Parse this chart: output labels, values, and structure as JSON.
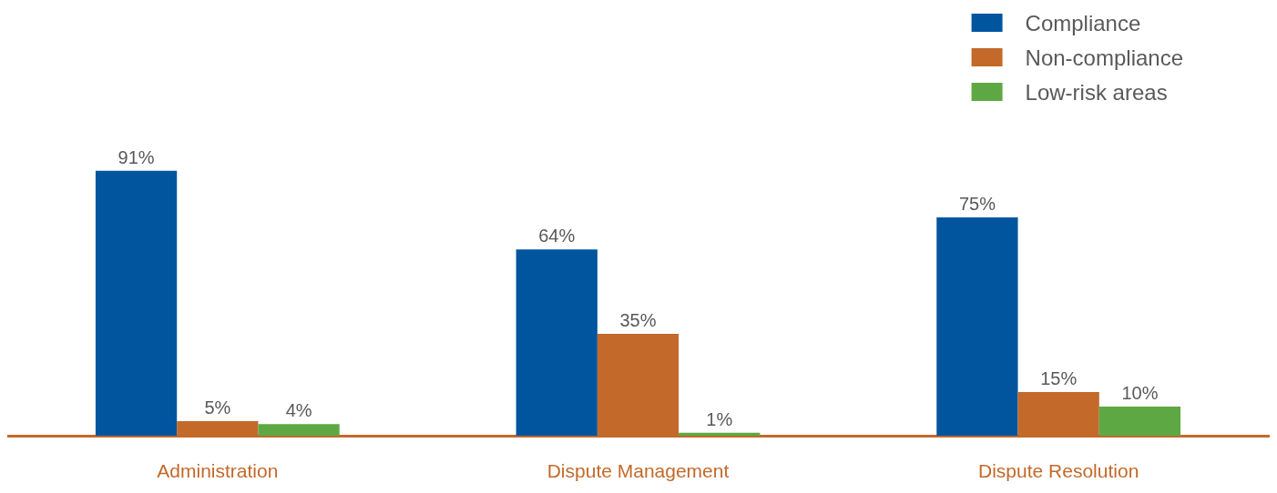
{
  "chart_data": {
    "type": "bar",
    "categories": [
      "Administration",
      "Dispute Management",
      "Dispute Resolution"
    ],
    "series": [
      {
        "name": "Compliance",
        "color": "#00559f",
        "values": [
          91,
          64,
          75
        ],
        "value_labels": [
          "91%",
          "64%",
          "75%"
        ]
      },
      {
        "name": "Non-compliance",
        "color": "#c3692a",
        "values": [
          5,
          35,
          15
        ],
        "value_labels": [
          "5%",
          "35%",
          "15%"
        ]
      },
      {
        "name": "Low-risk areas",
        "color": "#5ea843",
        "values": [
          4,
          1,
          10
        ],
        "value_labels": [
          "4%",
          "1%",
          "10%"
        ]
      }
    ],
    "grid": false,
    "legend": "top right"
  }
}
